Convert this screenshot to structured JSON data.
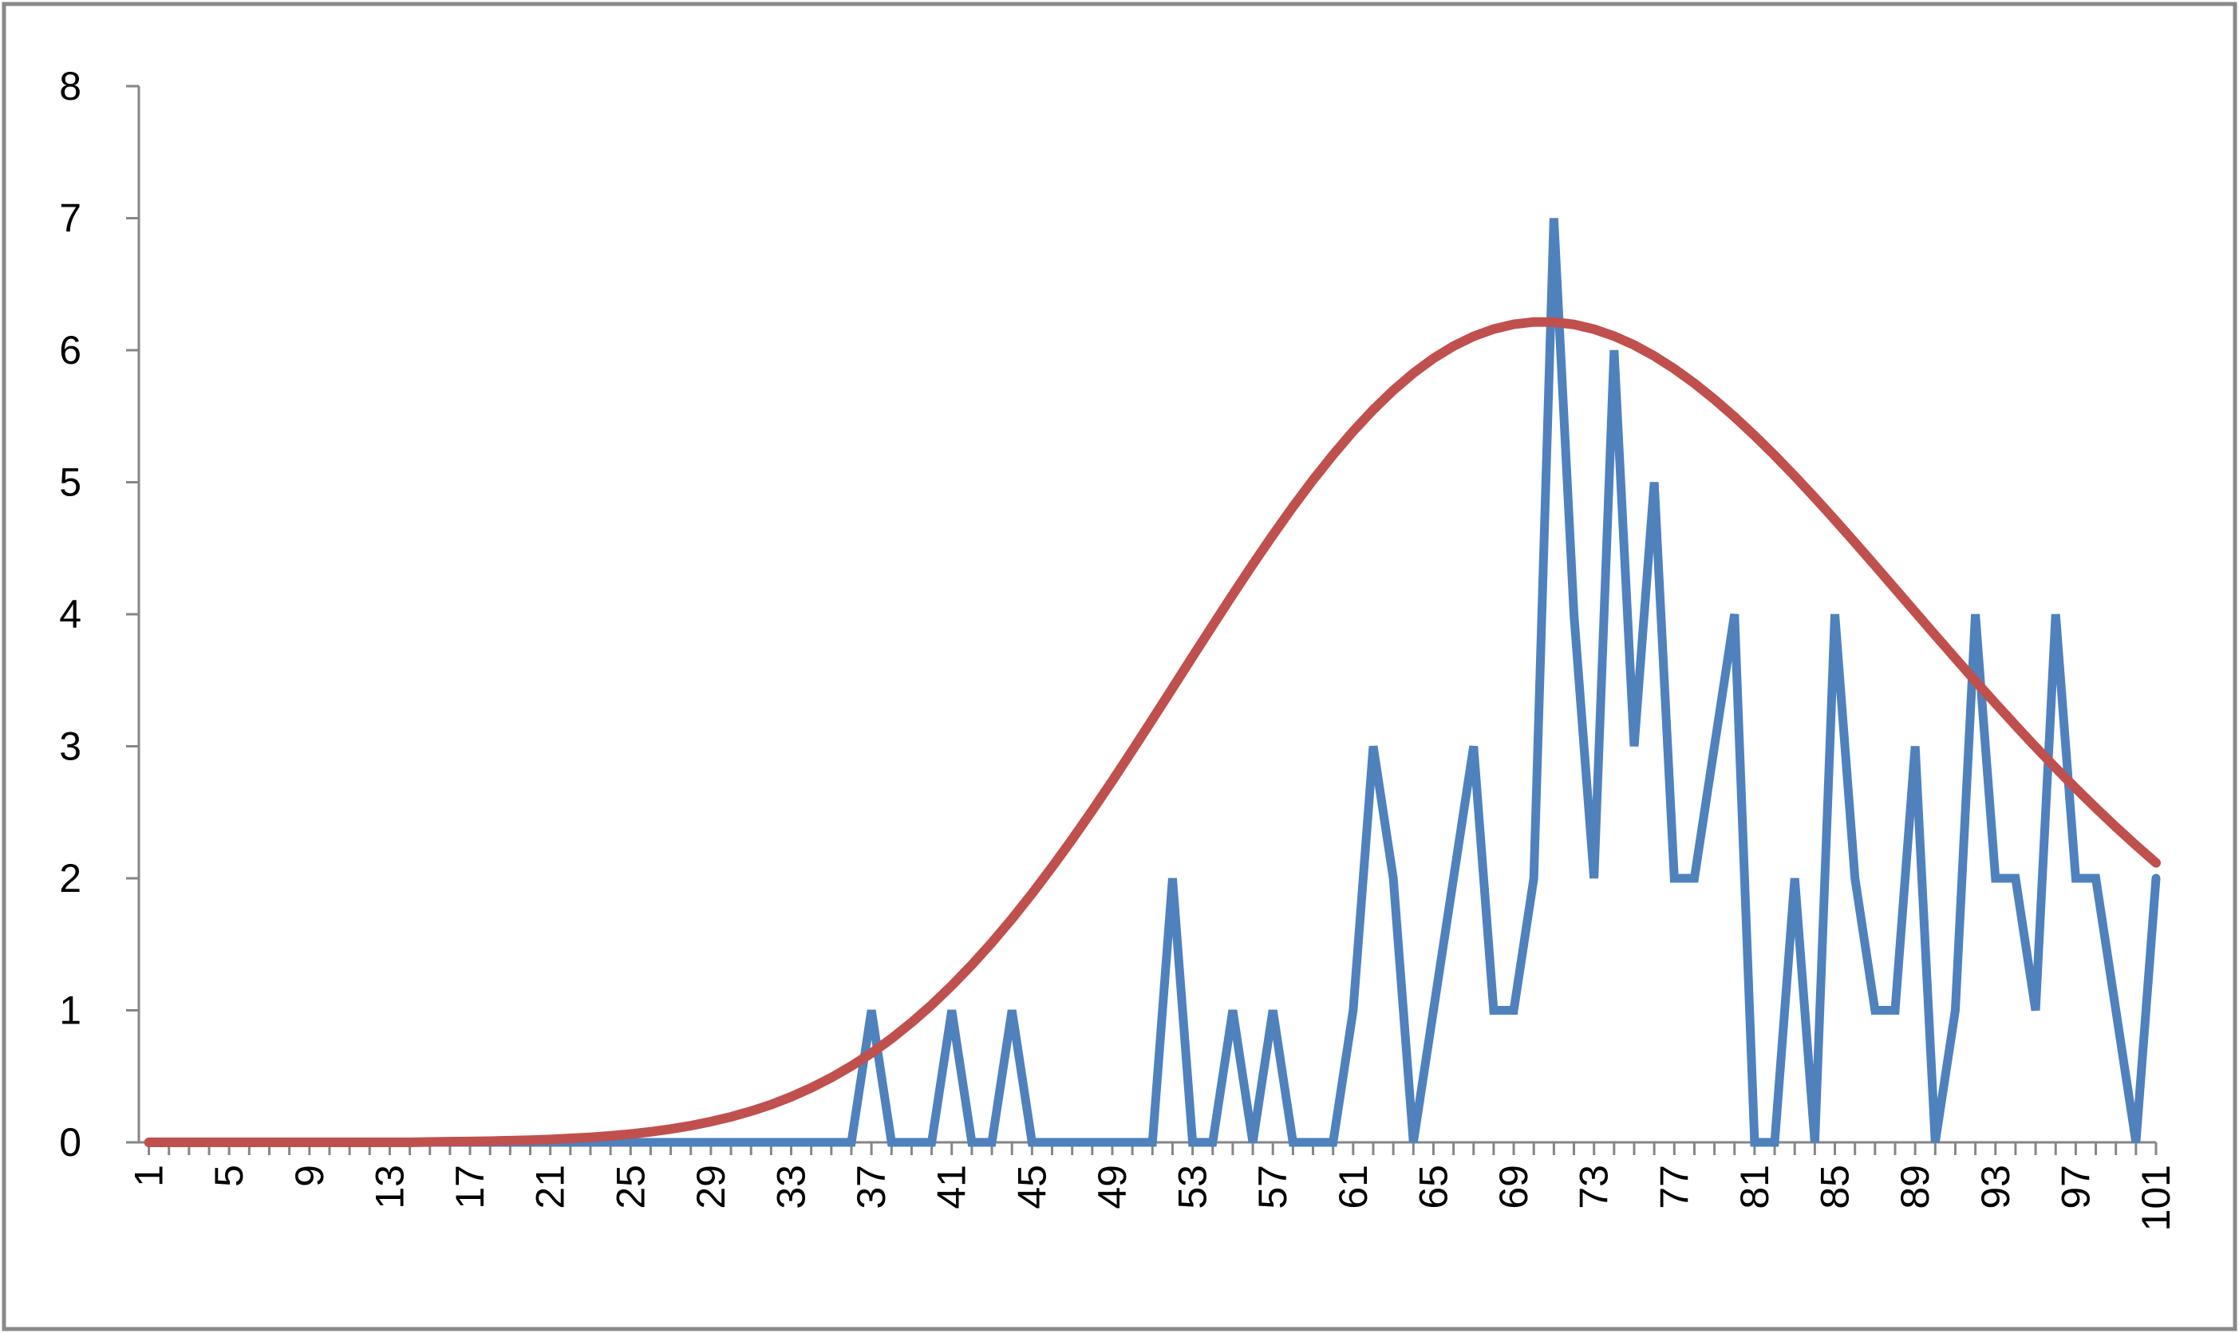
{
  "chart_data": {
    "type": "line",
    "title": "",
    "xlabel": "",
    "ylabel": "",
    "x": [
      1,
      2,
      3,
      4,
      5,
      6,
      7,
      8,
      9,
      10,
      11,
      12,
      13,
      14,
      15,
      16,
      17,
      18,
      19,
      20,
      21,
      22,
      23,
      24,
      25,
      26,
      27,
      28,
      29,
      30,
      31,
      32,
      33,
      34,
      35,
      36,
      37,
      38,
      39,
      40,
      41,
      42,
      43,
      44,
      45,
      46,
      47,
      48,
      49,
      50,
      51,
      52,
      53,
      54,
      55,
      56,
      57,
      58,
      59,
      60,
      61,
      62,
      63,
      64,
      65,
      66,
      67,
      68,
      69,
      70,
      71,
      72,
      73,
      74,
      75,
      76,
      77,
      78,
      79,
      80,
      81,
      82,
      83,
      84,
      85,
      86,
      87,
      88,
      89,
      90,
      91,
      92,
      93,
      94,
      95,
      96,
      97,
      98,
      99,
      100,
      101
    ],
    "x_tick_labels": [
      "1",
      "5",
      "9",
      "13",
      "17",
      "21",
      "25",
      "29",
      "33",
      "37",
      "41",
      "45",
      "49",
      "53",
      "57",
      "61",
      "65",
      "69",
      "73",
      "77",
      "81",
      "85",
      "89",
      "93",
      "97",
      "101"
    ],
    "xlim": [
      1,
      101
    ],
    "ylim": [
      0,
      8
    ],
    "y_ticks": [
      0,
      1,
      2,
      3,
      4,
      5,
      6,
      7,
      8
    ],
    "y_tick_labels": [
      "0",
      "1",
      "2",
      "3",
      "4",
      "5",
      "6",
      "7",
      "8"
    ],
    "grid": false,
    "legend": "none",
    "series": [
      {
        "color": "#4F81BD",
        "values": [
          0,
          0,
          0,
          0,
          0,
          0,
          0,
          0,
          0,
          0,
          0,
          0,
          0,
          0,
          0,
          0,
          0,
          0,
          0,
          0,
          0,
          0,
          0,
          0,
          0,
          0,
          0,
          0,
          0,
          0,
          0,
          0,
          0,
          0,
          0,
          0,
          1,
          0,
          0,
          0,
          1,
          0,
          0,
          1,
          0,
          0,
          0,
          0,
          0,
          0,
          0,
          2,
          0,
          0,
          1,
          0,
          1,
          0,
          0,
          0,
          1,
          3,
          2,
          0,
          1,
          2,
          3,
          1,
          1,
          2,
          7,
          4,
          2,
          6,
          3,
          5,
          2,
          2,
          3,
          4,
          0,
          0,
          2,
          0,
          4,
          2,
          1,
          1,
          3,
          0,
          1,
          4,
          2,
          2,
          1,
          4,
          2,
          2,
          1,
          0,
          2
        ]
      },
      {
        "color": "#C0504D",
        "values": [
          0,
          0,
          0,
          0,
          0,
          0,
          0,
          0,
          0,
          0,
          0,
          0,
          0,
          0,
          0.003,
          0.005,
          0.007,
          0.009,
          0.013,
          0.017,
          0.022,
          0.03,
          0.038,
          0.049,
          0.063,
          0.08,
          0.101,
          0.126,
          0.157,
          0.193,
          0.236,
          0.286,
          0.345,
          0.413,
          0.49,
          0.578,
          0.676,
          0.786,
          0.908,
          1.041,
          1.187,
          1.344,
          1.513,
          1.693,
          1.884,
          2.085,
          2.295,
          2.513,
          2.738,
          2.969,
          3.204,
          3.441,
          3.679,
          3.915,
          4.149,
          4.378,
          4.6,
          4.814,
          5.017,
          5.208,
          5.386,
          5.549,
          5.696,
          5.826,
          5.938,
          6.031,
          6.105,
          6.16,
          6.196,
          6.214,
          6.213,
          6.195,
          6.159,
          6.107,
          6.039,
          5.956,
          5.859,
          5.749,
          5.627,
          5.495,
          5.353,
          5.203,
          5.046,
          4.883,
          4.715,
          4.543,
          4.369,
          4.193,
          4.017,
          3.841,
          3.667,
          3.494,
          3.325,
          3.158,
          2.995,
          2.836,
          2.682,
          2.533,
          2.389,
          2.25,
          2.117
        ]
      }
    ]
  }
}
